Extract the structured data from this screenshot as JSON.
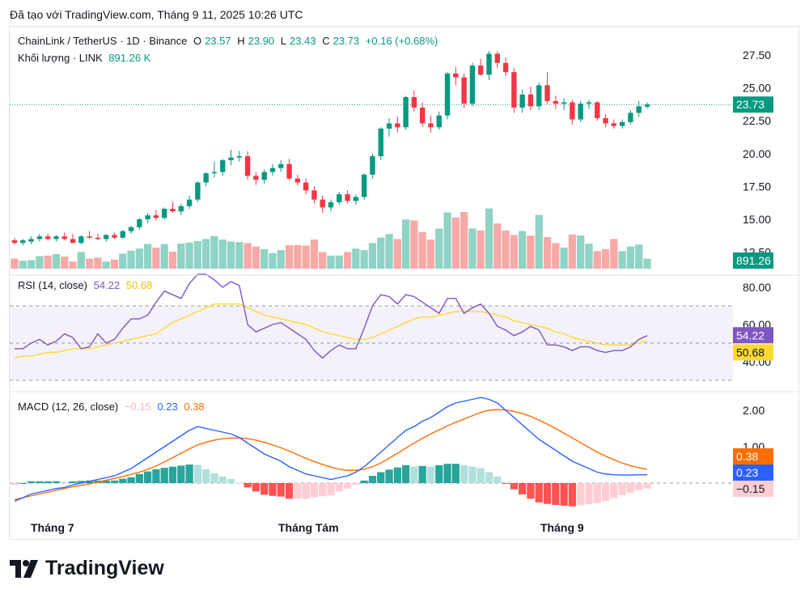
{
  "header": {
    "created_with": "Đã tạo với TradingView.com, Tháng 9 11, 2025 10:26 UTC"
  },
  "legend": {
    "symbol": "ChainLink / TetherUS · 1D · Binance",
    "o_label": "O",
    "o_value": "23.57",
    "h_label": "H",
    "h_value": "23.90",
    "l_label": "L",
    "l_value": "23.43",
    "c_label": "C",
    "c_value": "23.73",
    "change": "+0.16 (+0.68%)",
    "volume_label": "Khối lượng · LINK",
    "volume_value": "891.26 K",
    "rsi_label": "RSI (14, close)",
    "rsi_value": "54.22",
    "rsi_ma_value": "50.68",
    "macd_label": "MACD (12, 26, close)",
    "macd_hist_value": "−0.15",
    "macd_line_value": "0.23",
    "macd_signal_value": "0.38"
  },
  "logo_text": "TradingView",
  "colors": {
    "up": "#089981",
    "down": "#f23645",
    "rsi": "#7e57c2",
    "rsi_ma": "#fdd835",
    "macd": "#2962ff",
    "signal": "#ff6d00"
  },
  "chart_data": [
    {
      "type": "candlestick",
      "title": "ChainLink / TetherUS · 1D · Binance",
      "price_ticks": [
        "27.50",
        "25.00",
        "22.50",
        "20.00",
        "17.50",
        "15.00",
        "12.50"
      ],
      "last_price_label": "23.73",
      "volume_label": "891.26 K",
      "x_ticks": [
        "Tháng 7",
        "Tháng Tám",
        "Tháng 9"
      ],
      "ylim": [
        12.5,
        27.5
      ],
      "candles": [
        [
          13.4,
          13.6,
          13.1,
          13.2
        ],
        [
          13.2,
          13.5,
          13.0,
          13.4
        ],
        [
          13.3,
          13.7,
          13.1,
          13.5
        ],
        [
          13.5,
          13.9,
          13.3,
          13.7
        ],
        [
          13.7,
          13.9,
          13.4,
          13.5
        ],
        [
          13.5,
          13.8,
          13.3,
          13.7
        ],
        [
          13.7,
          14.0,
          13.4,
          13.5
        ],
        [
          13.5,
          13.9,
          13.2,
          13.2
        ],
        [
          13.2,
          13.8,
          13.1,
          13.7
        ],
        [
          13.7,
          14.1,
          13.5,
          13.6
        ],
        [
          13.6,
          13.9,
          13.4,
          13.5
        ],
        [
          13.5,
          13.9,
          13.3,
          13.8
        ],
        [
          13.8,
          14.0,
          13.5,
          13.6
        ],
        [
          13.6,
          14.2,
          13.5,
          14.1
        ],
        [
          14.1,
          14.5,
          13.9,
          14.4
        ],
        [
          14.4,
          15.1,
          14.2,
          15.0
        ],
        [
          15.0,
          15.5,
          14.7,
          15.3
        ],
        [
          15.3,
          15.7,
          14.9,
          15.1
        ],
        [
          15.1,
          15.9,
          15.0,
          15.8
        ],
        [
          15.8,
          16.3,
          15.5,
          15.6
        ],
        [
          15.6,
          16.2,
          15.3,
          16.0
        ],
        [
          16.0,
          16.8,
          15.8,
          16.5
        ],
        [
          16.5,
          17.9,
          16.3,
          17.8
        ],
        [
          17.8,
          18.6,
          17.5,
          18.5
        ],
        [
          18.5,
          19.4,
          18.2,
          18.6
        ],
        [
          18.6,
          19.6,
          18.3,
          19.5
        ],
        [
          19.5,
          20.3,
          19.1,
          19.7
        ],
        [
          19.7,
          20.2,
          19.4,
          19.8
        ],
        [
          19.8,
          20.2,
          18.0,
          18.3
        ],
        [
          18.3,
          18.6,
          17.6,
          18.0
        ],
        [
          18.0,
          18.8,
          17.7,
          18.6
        ],
        [
          18.6,
          19.2,
          18.3,
          18.9
        ],
        [
          18.9,
          19.5,
          18.6,
          19.2
        ],
        [
          19.2,
          19.6,
          18.0,
          18.1
        ],
        [
          18.1,
          18.4,
          17.6,
          17.8
        ],
        [
          17.8,
          18.1,
          16.9,
          17.2
        ],
        [
          17.2,
          17.5,
          16.2,
          16.5
        ],
        [
          16.5,
          16.8,
          15.5,
          15.9
        ],
        [
          15.9,
          16.5,
          15.6,
          16.3
        ],
        [
          16.3,
          17.1,
          16.1,
          16.9
        ],
        [
          16.9,
          17.2,
          16.2,
          16.4
        ],
        [
          16.4,
          16.9,
          16.1,
          16.7
        ],
        [
          16.7,
          18.5,
          16.5,
          18.4
        ],
        [
          18.4,
          20.0,
          18.1,
          19.8
        ],
        [
          19.8,
          22.0,
          19.5,
          21.9
        ],
        [
          21.9,
          22.7,
          21.3,
          22.3
        ],
        [
          22.3,
          22.8,
          21.6,
          22.0
        ],
        [
          22.0,
          24.4,
          21.8,
          24.3
        ],
        [
          24.3,
          24.8,
          23.2,
          23.5
        ],
        [
          23.5,
          23.9,
          22.0,
          22.3
        ],
        [
          22.3,
          22.9,
          21.6,
          22.0
        ],
        [
          22.0,
          23.2,
          21.8,
          22.9
        ],
        [
          22.9,
          26.2,
          22.6,
          26.1
        ],
        [
          26.1,
          26.6,
          25.2,
          25.8
        ],
        [
          25.8,
          26.1,
          23.5,
          23.8
        ],
        [
          23.8,
          26.9,
          23.6,
          26.7
        ],
        [
          26.7,
          27.2,
          25.9,
          26.0
        ],
        [
          26.0,
          27.8,
          25.6,
          27.6
        ],
        [
          27.6,
          27.8,
          26.5,
          26.9
        ],
        [
          26.9,
          27.3,
          25.9,
          26.2
        ],
        [
          26.2,
          26.5,
          23.1,
          23.5
        ],
        [
          23.5,
          24.9,
          23.1,
          24.5
        ],
        [
          24.5,
          25.1,
          23.3,
          23.6
        ],
        [
          23.6,
          25.4,
          23.3,
          25.2
        ],
        [
          25.2,
          26.2,
          23.8,
          24.0
        ],
        [
          24.0,
          24.4,
          23.4,
          23.8
        ],
        [
          23.8,
          24.2,
          23.3,
          23.9
        ],
        [
          23.9,
          24.1,
          22.2,
          22.6
        ],
        [
          22.6,
          24.0,
          22.4,
          23.8
        ],
        [
          23.8,
          24.1,
          23.4,
          23.9
        ],
        [
          23.9,
          24.0,
          22.5,
          22.7
        ],
        [
          22.7,
          23.0,
          22.0,
          22.3
        ],
        [
          22.3,
          22.6,
          21.9,
          22.1
        ],
        [
          22.1,
          22.6,
          21.9,
          22.4
        ],
        [
          22.4,
          23.3,
          22.2,
          23.1
        ],
        [
          23.1,
          24.0,
          22.8,
          23.6
        ],
        [
          23.57,
          23.9,
          23.43,
          23.73
        ]
      ],
      "volumes": [
        20,
        16,
        17,
        25,
        26,
        29,
        24,
        14,
        33,
        20,
        22,
        14,
        18,
        30,
        36,
        40,
        49,
        42,
        49,
        34,
        50,
        52,
        55,
        59,
        65,
        58,
        54,
        53,
        51,
        44,
        39,
        31,
        37,
        47,
        47,
        46,
        58,
        33,
        26,
        26,
        33,
        40,
        37,
        51,
        62,
        69,
        59,
        98,
        96,
        73,
        58,
        80,
        112,
        102,
        113,
        80,
        76,
        120,
        90,
        76,
        67,
        75,
        66,
        107,
        63,
        51,
        42,
        68,
        66,
        50,
        35,
        39,
        59,
        35,
        44,
        48,
        20
      ],
      "volumes_unit": "relative"
    },
    {
      "type": "line",
      "title": "RSI (14, close)",
      "y_ticks": [
        "80.00",
        "60.00",
        "40.00"
      ],
      "ylim": [
        30,
        85
      ],
      "bands": [
        30,
        70
      ],
      "current": {
        "rsi": "54.22",
        "ma": "50.68"
      },
      "series": [
        {
          "values": [
            47,
            47,
            50,
            52,
            49,
            51,
            55,
            53,
            47,
            48,
            55,
            50,
            52,
            58,
            63,
            63,
            65,
            72,
            78,
            76,
            74,
            82,
            87,
            87,
            84,
            80,
            83,
            81,
            60,
            56,
            58,
            60,
            61,
            58,
            55,
            52,
            46,
            42,
            46,
            49,
            47,
            47,
            58,
            70,
            76,
            75,
            71,
            76,
            75,
            72,
            69,
            66,
            74,
            74,
            66,
            69,
            71,
            66,
            59,
            57,
            54,
            56,
            59,
            57,
            49,
            49,
            48,
            46,
            48,
            48,
            46,
            45,
            46,
            46,
            48,
            52,
            54
          ]
        },
        {
          "values": [
            42,
            43,
            43,
            44,
            45,
            45,
            46,
            47,
            47,
            47,
            48,
            49,
            50,
            51,
            52,
            53,
            54,
            55,
            58,
            61,
            63,
            65,
            67,
            69,
            71,
            71,
            71,
            71,
            69,
            67,
            65,
            64,
            63,
            62,
            61,
            60,
            58,
            56,
            55,
            54,
            53,
            52,
            52,
            53,
            55,
            57,
            59,
            61,
            63,
            64,
            64,
            65,
            66,
            67,
            67,
            67,
            67,
            66,
            65,
            64,
            62,
            61,
            60,
            59,
            58,
            56,
            55,
            53,
            52,
            51,
            50,
            49,
            49,
            49,
            49,
            50,
            51
          ]
        }
      ]
    },
    {
      "type": "bar",
      "title": "MACD (12, 26, close)",
      "y_ticks": [
        "2.00",
        "1.00"
      ],
      "ylim": [
        -0.8,
        2.4
      ],
      "current": {
        "histogram": "−0.15",
        "macd": "0.23",
        "signal": "0.38"
      },
      "series": [
        {
          "values": [
            -0.5,
            -0.4,
            -0.3,
            -0.25,
            -0.2,
            -0.15,
            -0.12,
            -0.05,
            0.0,
            0.05,
            0.1,
            0.15,
            0.2,
            0.3,
            0.4,
            0.55,
            0.7,
            0.85,
            1.0,
            1.15,
            1.3,
            1.45,
            1.55,
            1.5,
            1.45,
            1.4,
            1.35,
            1.25,
            1.1,
            0.95,
            0.8,
            0.7,
            0.6,
            0.45,
            0.35,
            0.25,
            0.2,
            0.15,
            0.1,
            0.15,
            0.2,
            0.3,
            0.45,
            0.65,
            0.85,
            1.05,
            1.25,
            1.45,
            1.55,
            1.7,
            1.8,
            1.95,
            2.1,
            2.2,
            2.25,
            2.3,
            2.35,
            2.3,
            2.2,
            2.0,
            1.8,
            1.6,
            1.4,
            1.2,
            1.05,
            0.9,
            0.75,
            0.6,
            0.5,
            0.4,
            0.3,
            0.25,
            0.23,
            0.22,
            0.22,
            0.23,
            0.23
          ]
        },
        {
          "values": [
            -0.45,
            -0.4,
            -0.35,
            -0.3,
            -0.25,
            -0.2,
            -0.15,
            -0.1,
            -0.06,
            -0.02,
            0.03,
            0.08,
            0.13,
            0.18,
            0.24,
            0.3,
            0.38,
            0.47,
            0.58,
            0.7,
            0.82,
            0.94,
            1.05,
            1.12,
            1.18,
            1.22,
            1.24,
            1.24,
            1.22,
            1.18,
            1.12,
            1.05,
            0.97,
            0.88,
            0.78,
            0.68,
            0.59,
            0.51,
            0.44,
            0.38,
            0.35,
            0.35,
            0.38,
            0.45,
            0.55,
            0.68,
            0.82,
            0.96,
            1.1,
            1.23,
            1.35,
            1.46,
            1.57,
            1.67,
            1.76,
            1.85,
            1.94,
            2.0,
            2.02,
            2.01,
            1.97,
            1.91,
            1.83,
            1.73,
            1.62,
            1.5,
            1.37,
            1.24,
            1.11,
            0.98,
            0.85,
            0.74,
            0.64,
            0.55,
            0.48,
            0.42,
            0.38
          ]
        },
        {
          "values": [
            -0.05,
            0.0,
            0.05,
            0.05,
            0.05,
            0.05,
            0.03,
            0.05,
            0.06,
            0.07,
            0.07,
            0.07,
            0.07,
            0.12,
            0.16,
            0.25,
            0.32,
            0.38,
            0.42,
            0.45,
            0.48,
            0.51,
            0.5,
            0.38,
            0.27,
            0.18,
            0.11,
            0.01,
            -0.12,
            -0.23,
            -0.32,
            -0.35,
            -0.37,
            -0.43,
            -0.43,
            -0.43,
            -0.39,
            -0.36,
            -0.34,
            -0.23,
            -0.15,
            -0.05,
            0.07,
            0.2,
            0.3,
            0.37,
            0.43,
            0.49,
            0.45,
            0.47,
            0.45,
            0.49,
            0.53,
            0.53,
            0.49,
            0.45,
            0.41,
            0.3,
            0.18,
            -0.01,
            -0.17,
            -0.31,
            -0.43,
            -0.53,
            -0.57,
            -0.6,
            -0.62,
            -0.64,
            -0.61,
            -0.58,
            -0.55,
            -0.49,
            -0.41,
            -0.33,
            -0.26,
            -0.19,
            -0.15
          ]
        }
      ]
    }
  ]
}
